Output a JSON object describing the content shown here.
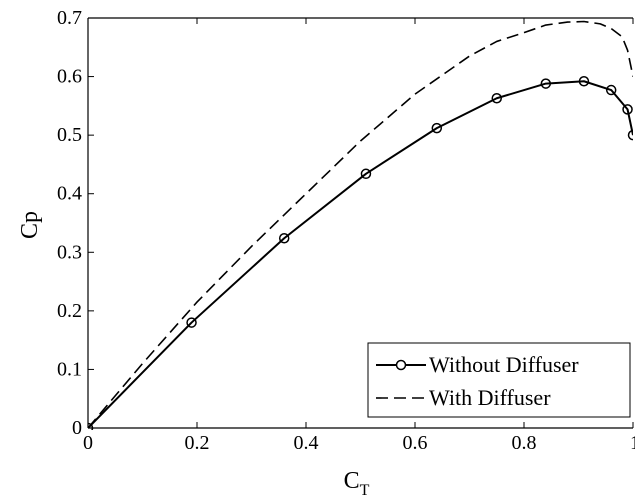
{
  "chart_data": {
    "type": "line",
    "title": "",
    "xlabel": {
      "main": "C",
      "sub": "T"
    },
    "ylabel": "Cp",
    "xlim": [
      0,
      1
    ],
    "ylim": [
      0,
      0.7
    ],
    "x_ticks": [
      "0",
      "0.2",
      "0.4",
      "0.6",
      "0.8",
      "1"
    ],
    "y_ticks": [
      "0",
      "0.1",
      "0.2",
      "0.3",
      "0.4",
      "0.5",
      "0.6",
      "0.7"
    ],
    "grid": false,
    "legend_position": "bottom-right",
    "series": [
      {
        "name": "Without Diffuser",
        "style": "solid",
        "marker": "circle",
        "color": "#000000",
        "x": [
          0,
          0.19,
          0.36,
          0.51,
          0.64,
          0.75,
          0.84,
          0.91,
          0.96,
          0.99,
          1.0
        ],
        "y": [
          0,
          0.18,
          0.324,
          0.434,
          0.512,
          0.563,
          0.588,
          0.592,
          0.577,
          0.544,
          0.5
        ]
      },
      {
        "name": "With Diffuser",
        "style": "dashed",
        "marker": "none",
        "color": "#000000",
        "x": [
          0,
          0.1,
          0.2,
          0.3,
          0.4,
          0.5,
          0.6,
          0.7,
          0.75,
          0.8,
          0.84,
          0.88,
          0.91,
          0.94,
          0.96,
          0.98,
          0.99,
          1.0
        ],
        "y": [
          0,
          0.11,
          0.215,
          0.31,
          0.4,
          0.49,
          0.57,
          0.635,
          0.66,
          0.675,
          0.688,
          0.693,
          0.694,
          0.69,
          0.682,
          0.668,
          0.645,
          0.6
        ]
      }
    ]
  }
}
